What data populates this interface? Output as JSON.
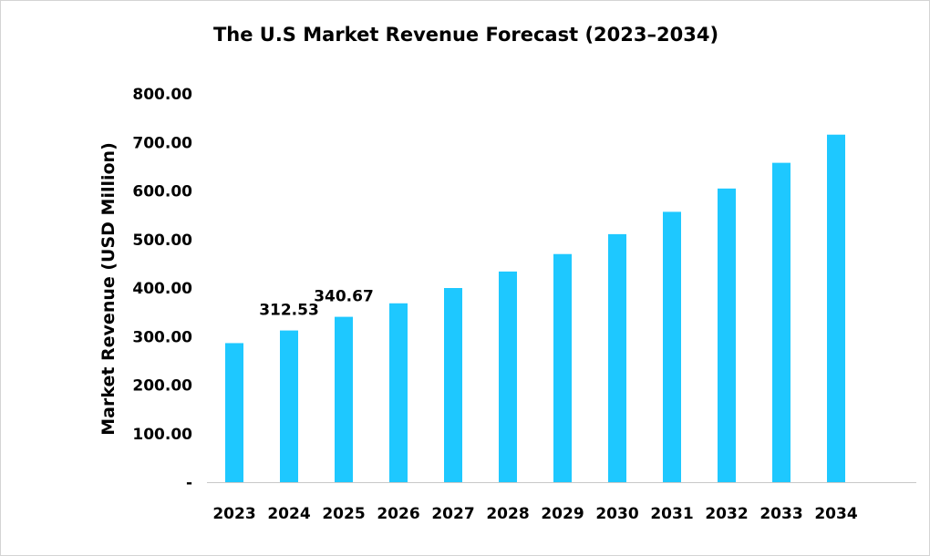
{
  "chart_data": {
    "type": "bar",
    "title": "The U.S Market Revenue Forecast (2023–2034)",
    "xlabel": "",
    "ylabel": "Market Revenue (USD Million)",
    "categories": [
      "2023",
      "2024",
      "2025",
      "2026",
      "2027",
      "2028",
      "2029",
      "2030",
      "2031",
      "2032",
      "2033",
      "2034"
    ],
    "values": [
      286.5,
      312.53,
      340.67,
      368.5,
      400.0,
      434.0,
      470.0,
      511.0,
      557.0,
      605.0,
      658.0,
      716.0
    ],
    "series": [
      {
        "name": "Market Revenue",
        "values": [
          286.5,
          312.53,
          340.67,
          368.5,
          400.0,
          434.0,
          470.0,
          511.0,
          557.0,
          605.0,
          658.0,
          716.0
        ]
      }
    ],
    "data_labels": [
      {
        "category": "2024",
        "text": "312.53"
      },
      {
        "category": "2025",
        "text": "340.67"
      }
    ],
    "ylim": [
      0,
      800
    ],
    "y_ticks": [
      0,
      100,
      200,
      300,
      400,
      500,
      600,
      700,
      800
    ],
    "y_tick_labels": [
      "-",
      "100.00",
      "200.00",
      "300.00",
      "400.00",
      "500.00",
      "600.00",
      "700.00",
      "800.00"
    ],
    "bar_color": "#1ec8ff",
    "grid": false,
    "legend": "none"
  }
}
